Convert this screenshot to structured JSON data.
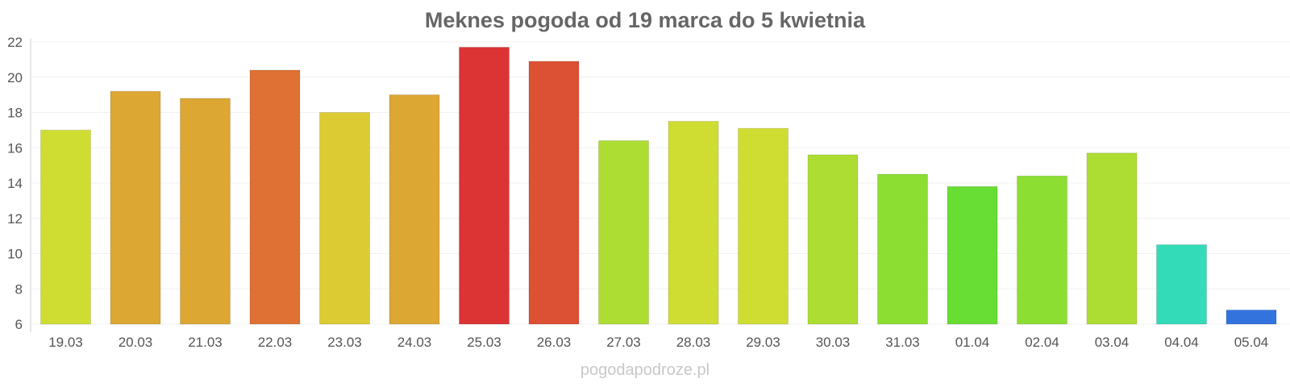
{
  "chart_data": {
    "type": "bar",
    "title": "Meknes pogoda od 19 marca do 5 kwietnia",
    "xlabel": "",
    "ylabel": "",
    "ylim": [
      6,
      22
    ],
    "yticks": [
      6,
      8,
      10,
      12,
      14,
      16,
      18,
      20,
      22
    ],
    "grid": true,
    "categories": [
      "19.03",
      "20.03",
      "21.03",
      "22.03",
      "23.03",
      "24.03",
      "25.03",
      "26.03",
      "27.03",
      "28.03",
      "29.03",
      "30.03",
      "31.03",
      "01.04",
      "02.04",
      "03.04",
      "04.04",
      "05.04"
    ],
    "values": [
      17.0,
      19.2,
      18.8,
      20.4,
      18.0,
      19.0,
      21.7,
      20.9,
      16.4,
      17.5,
      17.1,
      15.6,
      14.5,
      13.8,
      14.4,
      15.7,
      10.5,
      6.8
    ],
    "colors": [
      "#cfdd33",
      "#dca733",
      "#dca733",
      "#de7133",
      "#dccb33",
      "#dca733",
      "#dc3434",
      "#dc5034",
      "#addd33",
      "#cfdd33",
      "#cfdd33",
      "#addd33",
      "#8cde33",
      "#68dd33",
      "#8cde33",
      "#addd33",
      "#33dbb8",
      "#3373dd"
    ]
  },
  "watermark": "pogodapodroze.pl"
}
